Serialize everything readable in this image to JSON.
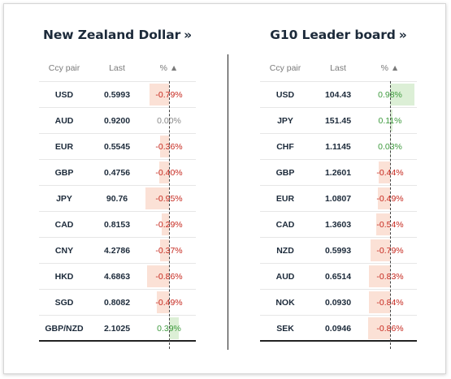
{
  "left": {
    "title": "New Zealand Dollar",
    "title_arrow": "»",
    "headers": {
      "pair": "Ccy pair",
      "last": "Last",
      "pct": "% ▲"
    },
    "rows": [
      {
        "pair": "USD",
        "last": "0.5993",
        "pct": "-0.79%",
        "value": -0.79
      },
      {
        "pair": "AUD",
        "last": "0.9200",
        "pct": "0.00%",
        "value": 0.0
      },
      {
        "pair": "EUR",
        "last": "0.5545",
        "pct": "-0.36%",
        "value": -0.36
      },
      {
        "pair": "GBP",
        "last": "0.4756",
        "pct": "-0.40%",
        "value": -0.4
      },
      {
        "pair": "JPY",
        "last": "90.76",
        "pct": "-0.95%",
        "value": -0.95
      },
      {
        "pair": "CAD",
        "last": "0.8153",
        "pct": "-0.29%",
        "value": -0.29
      },
      {
        "pair": "CNY",
        "last": "4.2786",
        "pct": "-0.37%",
        "value": -0.37
      },
      {
        "pair": "HKD",
        "last": "4.6863",
        "pct": "-0.86%",
        "value": -0.86
      },
      {
        "pair": "SGD",
        "last": "0.8082",
        "pct": "-0.49%",
        "value": -0.49
      },
      {
        "pair": "GBP/NZD",
        "last": "2.1025",
        "pct": "0.39%",
        "value": 0.39
      }
    ]
  },
  "right": {
    "title": "G10 Leader board",
    "title_arrow": "»",
    "headers": {
      "pair": "Ccy pair",
      "last": "Last",
      "pct": "% ▲"
    },
    "rows": [
      {
        "pair": "USD",
        "last": "104.43",
        "pct": "0.98%",
        "value": 0.98
      },
      {
        "pair": "JPY",
        "last": "151.45",
        "pct": "0.11%",
        "value": 0.11
      },
      {
        "pair": "CHF",
        "last": "1.1145",
        "pct": "0.03%",
        "value": 0.03
      },
      {
        "pair": "GBP",
        "last": "1.2601",
        "pct": "-0.44%",
        "value": -0.44
      },
      {
        "pair": "EUR",
        "last": "1.0807",
        "pct": "-0.49%",
        "value": -0.49
      },
      {
        "pair": "CAD",
        "last": "1.3603",
        "pct": "-0.54%",
        "value": -0.54
      },
      {
        "pair": "NZD",
        "last": "0.5993",
        "pct": "-0.79%",
        "value": -0.79
      },
      {
        "pair": "AUD",
        "last": "0.6514",
        "pct": "-0.83%",
        "value": -0.83
      },
      {
        "pair": "NOK",
        "last": "0.0930",
        "pct": "-0.84%",
        "value": -0.84
      },
      {
        "pair": "SEK",
        "last": "0.0946",
        "pct": "-0.86%",
        "value": -0.86
      }
    ]
  },
  "colors": {
    "negative": "#c6281e",
    "positive": "#3d9a3d",
    "neutral": "#888888"
  }
}
